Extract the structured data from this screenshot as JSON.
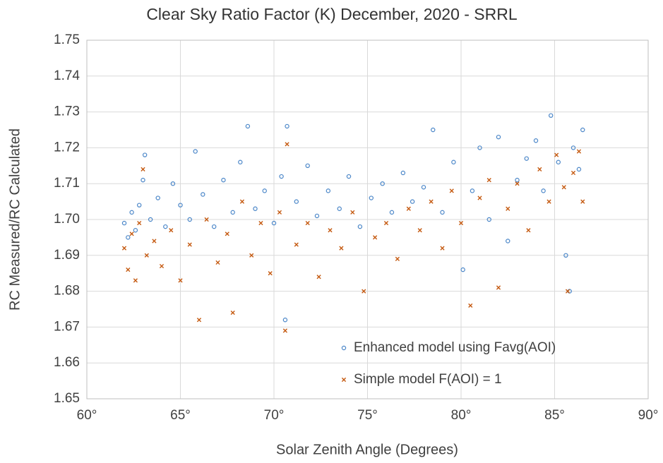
{
  "chart_data": {
    "type": "scatter",
    "title": "Clear Sky Ratio Factor (K) December, 2020 - SRRL",
    "x_label": "Solar Zenith Angle (Degrees)",
    "y_label": "RC Measured/RC Calculated",
    "xlim": [
      60,
      90
    ],
    "xticks": [
      {
        "value": 60,
        "label": "60°"
      },
      {
        "value": 65,
        "label": "65°"
      },
      {
        "value": 70,
        "label": "70°"
      },
      {
        "value": 75,
        "label": "75°"
      },
      {
        "value": 80,
        "label": "80°"
      },
      {
        "value": 85,
        "label": "85°"
      },
      {
        "value": 90,
        "label": "90°"
      }
    ],
    "ylim": [
      1.65,
      1.75
    ],
    "yticks": [
      {
        "value": 1.65,
        "label": "1.65"
      },
      1.66,
      1.67,
      1.68,
      1.69,
      {
        "value": 1.7,
        "label": "1.70"
      },
      1.71,
      1.72,
      1.73,
      1.74,
      1.75
    ],
    "grid": true,
    "legend": "lower-right",
    "series": [
      {
        "name": "Enhanced model using Favg(AOI)",
        "color": "#4a86c8",
        "marker": "circle",
        "x": [
          62.0,
          62.2,
          62.4,
          62.6,
          62.8,
          63.0,
          63.1,
          63.4,
          63.8,
          64.2,
          64.6,
          65.0,
          65.5,
          65.8,
          66.2,
          66.8,
          67.3,
          67.8,
          68.2,
          68.6,
          69.0,
          69.5,
          70.0,
          70.4,
          70.7,
          70.6,
          71.2,
          71.8,
          72.3,
          72.9,
          73.5,
          74.0,
          74.6,
          75.2,
          75.8,
          76.3,
          76.9,
          77.4,
          78.0,
          78.5,
          79.0,
          79.6,
          80.1,
          80.6,
          81.0,
          81.5,
          82.0,
          82.5,
          83.0,
          83.5,
          84.0,
          84.4,
          84.8,
          85.2,
          85.6,
          85.8,
          86.0,
          86.3,
          86.5
        ],
        "values": [
          1.699,
          1.695,
          1.702,
          1.697,
          1.704,
          1.711,
          1.718,
          1.7,
          1.706,
          1.698,
          1.71,
          1.704,
          1.7,
          1.719,
          1.707,
          1.698,
          1.711,
          1.702,
          1.716,
          1.726,
          1.703,
          1.708,
          1.699,
          1.712,
          1.726,
          1.672,
          1.705,
          1.715,
          1.701,
          1.708,
          1.703,
          1.712,
          1.698,
          1.706,
          1.71,
          1.702,
          1.713,
          1.705,
          1.709,
          1.725,
          1.702,
          1.716,
          1.686,
          1.708,
          1.72,
          1.7,
          1.723,
          1.694,
          1.711,
          1.717,
          1.722,
          1.708,
          1.729,
          1.716,
          1.69,
          1.68,
          1.72,
          1.714,
          1.725
        ]
      },
      {
        "name": "Simple model F(AOI) = 1",
        "color": "#c55a11",
        "marker": "x",
        "x": [
          62.0,
          62.2,
          62.4,
          62.6,
          62.8,
          63.0,
          63.2,
          63.6,
          64.0,
          64.5,
          65.0,
          65.5,
          66.0,
          66.4,
          67.0,
          67.5,
          67.8,
          68.3,
          68.8,
          69.3,
          69.8,
          70.3,
          70.6,
          70.7,
          71.2,
          71.8,
          72.4,
          73.0,
          73.6,
          74.2,
          74.8,
          75.4,
          76.0,
          76.6,
          77.2,
          77.8,
          78.4,
          79.0,
          79.5,
          80.0,
          80.5,
          81.0,
          81.5,
          82.0,
          82.5,
          83.0,
          83.6,
          84.2,
          84.7,
          85.1,
          85.5,
          85.7,
          86.0,
          86.3,
          86.5
        ],
        "values": [
          1.692,
          1.686,
          1.696,
          1.683,
          1.699,
          1.714,
          1.69,
          1.694,
          1.687,
          1.697,
          1.683,
          1.693,
          1.672,
          1.7,
          1.688,
          1.696,
          1.674,
          1.705,
          1.69,
          1.699,
          1.685,
          1.702,
          1.669,
          1.721,
          1.693,
          1.699,
          1.684,
          1.697,
          1.692,
          1.702,
          1.68,
          1.695,
          1.699,
          1.689,
          1.703,
          1.697,
          1.705,
          1.692,
          1.708,
          1.699,
          1.676,
          1.706,
          1.711,
          1.681,
          1.703,
          1.71,
          1.697,
          1.714,
          1.705,
          1.718,
          1.709,
          1.68,
          1.713,
          1.719,
          1.705
        ]
      }
    ]
  }
}
